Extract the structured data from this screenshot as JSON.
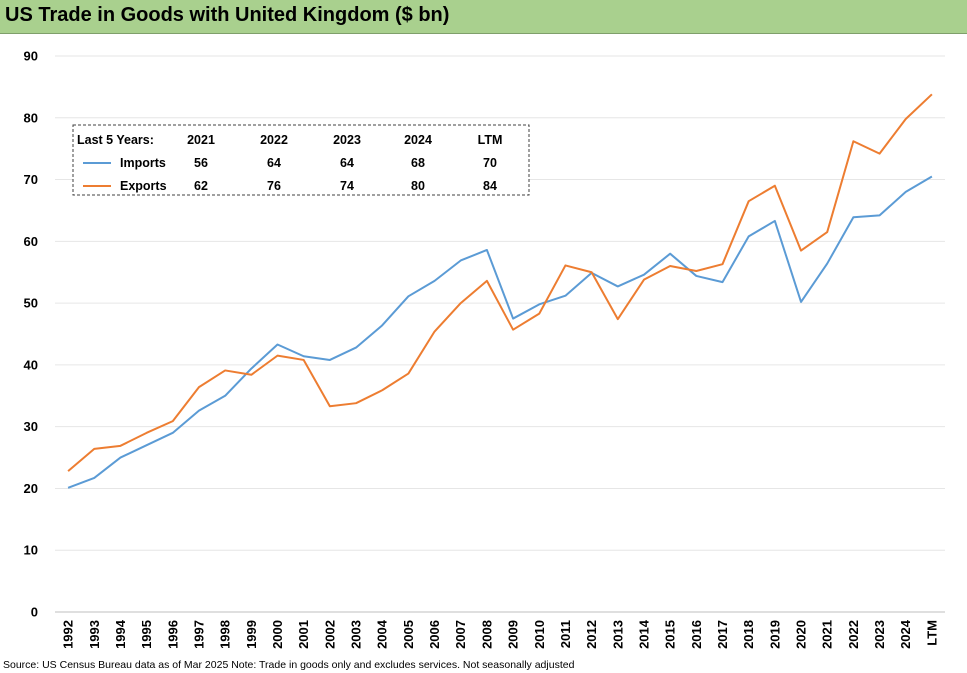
{
  "title": "US Trade in Goods with United Kingdom ($ bn)",
  "source": "Source: US Census Bureau data as of Mar 2025 Note: Trade in goods only and excludes services. Not seasonally adjusted",
  "chart_data": {
    "type": "line",
    "categories": [
      "1992",
      "1993",
      "1994",
      "1995",
      "1996",
      "1997",
      "1998",
      "1999",
      "2000",
      "2001",
      "2002",
      "2003",
      "2004",
      "2005",
      "2006",
      "2007",
      "2008",
      "2009",
      "2010",
      "2011",
      "2012",
      "2013",
      "2014",
      "2015",
      "2016",
      "2017",
      "2018",
      "2019",
      "2020",
      "2021",
      "2022",
      "2023",
      "2024",
      "LTM"
    ],
    "series": [
      {
        "name": "Imports",
        "color": "#5b9bd5",
        "values": [
          20.1,
          21.7,
          25.0,
          27.0,
          29.0,
          32.6,
          35.0,
          39.4,
          43.3,
          41.4,
          40.8,
          42.8,
          46.4,
          51.1,
          53.6,
          56.9,
          58.6,
          47.5,
          49.8,
          51.2,
          54.9,
          52.7,
          54.6,
          58.0,
          54.4,
          53.4,
          60.8,
          63.3,
          50.2,
          56.4,
          63.9,
          64.2,
          68.0,
          70.5
        ]
      },
      {
        "name": "Exports",
        "color": "#ed7d31",
        "values": [
          22.8,
          26.4,
          26.9,
          29.0,
          30.9,
          36.4,
          39.1,
          38.4,
          41.5,
          40.8,
          33.3,
          33.8,
          35.9,
          38.6,
          45.4,
          50.0,
          53.6,
          45.7,
          48.3,
          56.1,
          55.0,
          47.4,
          53.8,
          56.0,
          55.2,
          56.3,
          66.5,
          69.0,
          58.5,
          61.5,
          76.2,
          74.2,
          79.8,
          83.8
        ]
      }
    ],
    "yticks": [
      0,
      10,
      20,
      30,
      40,
      50,
      60,
      70,
      80,
      90
    ],
    "ylim": [
      0,
      90
    ],
    "grid": true,
    "inset_table": {
      "header_label": "Last 5 Years:",
      "columns": [
        "2021",
        "2022",
        "2023",
        "2024",
        "LTM"
      ],
      "rows": [
        {
          "name": "Imports",
          "values": [
            "56",
            "64",
            "64",
            "68",
            "70"
          ]
        },
        {
          "name": "Exports",
          "values": [
            "62",
            "76",
            "74",
            "80",
            "84"
          ]
        }
      ]
    }
  }
}
